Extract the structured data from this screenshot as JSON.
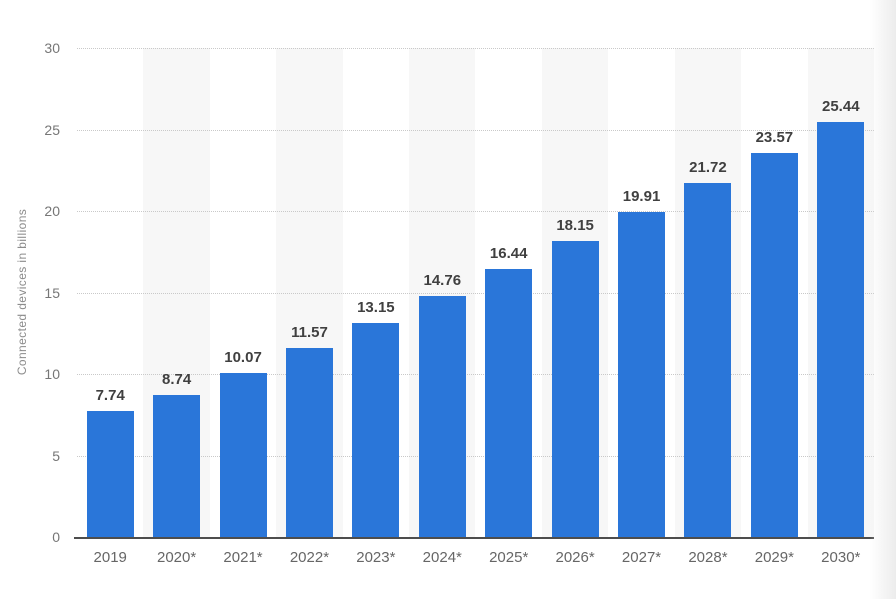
{
  "chart_data": {
    "type": "bar",
    "title": "",
    "xlabel": "",
    "ylabel": "Connected devices in billions",
    "categories": [
      "2019",
      "2020*",
      "2021*",
      "2022*",
      "2023*",
      "2024*",
      "2025*",
      "2026*",
      "2027*",
      "2028*",
      "2029*",
      "2030*"
    ],
    "values": [
      7.74,
      8.74,
      10.07,
      11.57,
      13.15,
      14.76,
      16.44,
      18.15,
      19.91,
      21.72,
      23.57,
      25.44
    ],
    "value_labels": [
      "7.74",
      "8.74",
      "10.07",
      "11.57",
      "13.15",
      "14.76",
      "16.44",
      "18.15",
      "19.91",
      "21.72",
      "23.57",
      "25.44"
    ],
    "ylim": [
      0,
      30
    ],
    "yticks": [
      0,
      5,
      10,
      15,
      20,
      25,
      30
    ],
    "grid": "horizontal-dotted",
    "legend": "none",
    "colors": {
      "bar": "#2a76d9",
      "column_stripe": "#f7f7f7",
      "value_label": "#404040",
      "category_label": "#666666",
      "tick_label": "#767676",
      "axis_line": "#4d4d4d",
      "gridline": "#c9c9c9",
      "background": "#ffffff"
    }
  }
}
